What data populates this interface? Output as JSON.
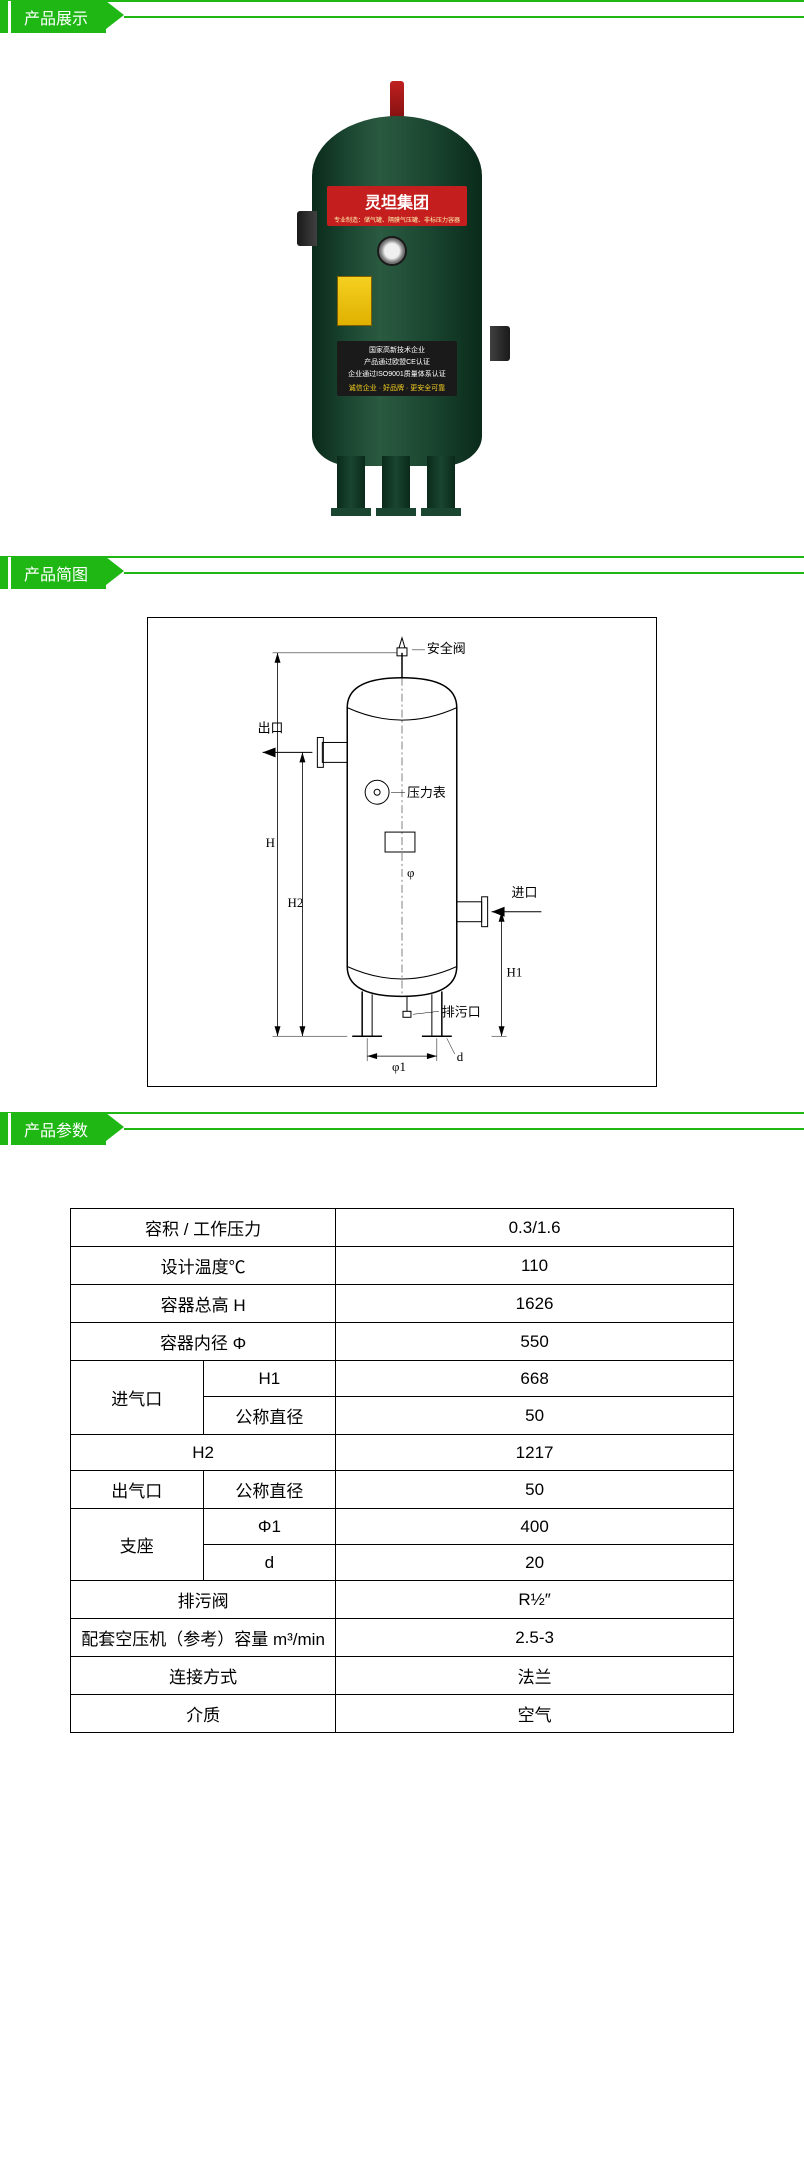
{
  "sections": {
    "display": "产品展示",
    "diagram": "产品简图",
    "params": "产品参数"
  },
  "brand": {
    "name": "灵坦集团",
    "subtitle": "专业制造：储气罐、隔膜气压罐、非标压力容器",
    "cert1": "国家高新技术企业",
    "cert2": "产品通过欧盟CE认证",
    "cert3": "企业通过ISO9001质量体系认证",
    "cert4": "诚信企业 · 好品牌 · 更安全可靠"
  },
  "diagram_labels": {
    "safety_valve": "安全阀",
    "outlet": "出口",
    "gauge": "压力表",
    "inlet": "进口",
    "drain": "排污口",
    "h": "H",
    "h1": "H1",
    "h2": "H2",
    "phi": "φ",
    "phi1": "φ1",
    "d": "d"
  },
  "param_table": {
    "rows": [
      {
        "label": "容积 / 工作压力",
        "sub": "",
        "value": "0.3/1.6",
        "span": 2
      },
      {
        "label": "设计温度℃",
        "sub": "",
        "value": "110",
        "span": 2
      },
      {
        "label": "容器总高 H",
        "sub": "",
        "value": "1626",
        "span": 2
      },
      {
        "label": "容器内径 Φ",
        "sub": "",
        "value": "550",
        "span": 2
      },
      {
        "label": "进气口",
        "sub": "H1",
        "value": "668",
        "rowspan_start": true
      },
      {
        "label": "",
        "sub": "公称直径",
        "value": "50",
        "rowspan_cont": true
      },
      {
        "label": "H2",
        "sub": "",
        "value": "1217",
        "span": 2
      },
      {
        "label": "出气口",
        "sub": "公称直径",
        "value": "50"
      },
      {
        "label": "支座",
        "sub": "Φ1",
        "value": "400",
        "rowspan_start": true
      },
      {
        "label": "",
        "sub": "d",
        "value": "20",
        "rowspan_cont": true
      },
      {
        "label": "排污阀",
        "sub": "",
        "value": "R½″",
        "span": 2
      },
      {
        "label": "配套空压机（参考）容量 m³/min",
        "sub": "",
        "value": "2.5-3",
        "span": 2
      },
      {
        "label": "连接方式",
        "sub": "",
        "value": "法兰",
        "span": 2
      },
      {
        "label": "介质",
        "sub": "",
        "value": "空气",
        "span": 2
      }
    ]
  },
  "styling": {
    "primary_color": "#1fb714",
    "tank_color": "#1a4530",
    "label_red": "#c41e1e",
    "label_yellow": "#f5d020",
    "table_border": "#000000",
    "table_font_size": 17,
    "header_font_size": 16
  }
}
